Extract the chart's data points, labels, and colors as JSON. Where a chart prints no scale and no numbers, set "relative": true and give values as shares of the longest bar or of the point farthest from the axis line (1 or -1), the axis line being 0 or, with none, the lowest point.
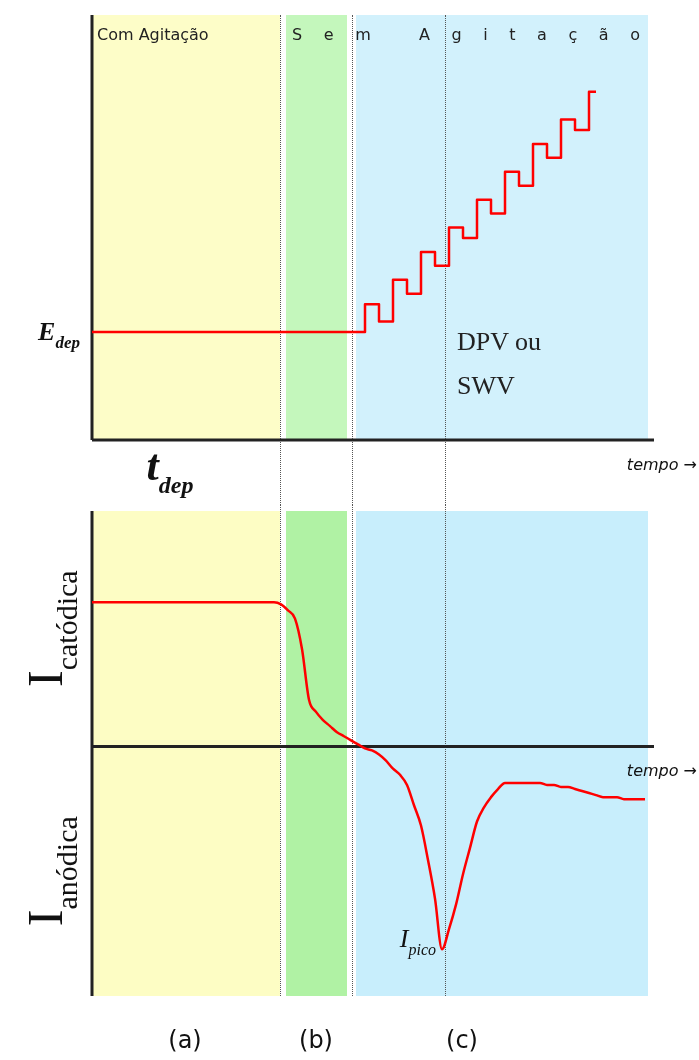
{
  "chart_data": [
    {
      "type": "step",
      "relative": true,
      "categories": [
        null,
        null,
        null,
        null,
        null,
        null,
        null,
        null,
        null,
        null,
        null,
        null,
        null,
        null,
        null,
        null,
        null,
        null,
        null,
        null,
        null,
        null,
        null,
        null,
        null,
        null,
        null,
        null,
        null,
        null,
        null,
        null,
        null,
        null,
        null,
        null,
        null,
        null,
        null,
        null,
        null,
        null,
        null,
        null,
        null,
        null,
        null,
        null,
        null,
        null,
        null,
        null,
        null,
        null,
        null,
        null,
        null,
        null,
        null,
        null,
        null,
        null,
        null,
        null,
        null,
        null,
        null,
        null,
        null,
        null,
        null,
        null,
        null,
        null,
        null,
        null,
        null,
        null,
        null,
        null
      ],
      "values": [
        0.31,
        0.31,
        0.31,
        0.31,
        0.31,
        0.31,
        0.31,
        0.31,
        0.31,
        0.31,
        0.31,
        0.31,
        0.31,
        0.31,
        0.31,
        0.31,
        0.31,
        0.31,
        0.31,
        0.31,
        0.31,
        0.31,
        0.31,
        0.31,
        0.31,
        0.31,
        0.31,
        0.31,
        0.31,
        0.31,
        0.31,
        0.31,
        0.31,
        0.31,
        0.31,
        0.31,
        0.31,
        0.31,
        0.31,
        0.39,
        0.39,
        0.34,
        0.34,
        0.46,
        0.46,
        0.42,
        0.42,
        0.54,
        0.54,
        0.5,
        0.5,
        0.61,
        0.61,
        0.58,
        0.58,
        0.69,
        0.69,
        0.65,
        0.65,
        0.77,
        0.77,
        0.73,
        0.73,
        0.85,
        0.85,
        0.81,
        0.81,
        0.92,
        0.92,
        0.89,
        0.89,
        1,
        1,
        null,
        null,
        null,
        null,
        null,
        null,
        null
      ],
      "color": "#ff0000",
      "ylabel": "E$_{dep}$",
      "xlabel": "tempo →",
      "annotations": [
        "Com Agitação",
        "Sem Agitação",
        "t$_{dep}$",
        "DPV ou SWV"
      ]
    },
    {
      "type": "line",
      "relative": true,
      "categories": [
        null,
        null,
        null,
        null,
        null,
        null,
        null,
        null,
        null,
        null,
        null,
        null,
        null,
        null,
        null,
        null,
        null,
        null,
        null,
        null,
        null,
        null,
        null,
        null,
        null,
        null,
        null,
        null,
        null,
        null,
        null,
        null,
        null,
        null,
        null,
        null,
        null,
        null,
        null,
        null,
        null,
        null,
        null,
        null,
        null,
        null,
        null,
        null,
        null,
        null,
        null,
        null,
        null,
        null,
        null,
        null,
        null,
        null,
        null,
        null,
        null,
        null,
        null,
        null,
        null,
        null,
        null,
        null,
        null,
        null,
        null,
        null,
        null,
        null,
        null,
        null,
        null,
        null,
        null,
        null
      ],
      "values": [
        0.71,
        0.71,
        0.71,
        0.71,
        0.71,
        0.71,
        0.71,
        0.71,
        0.71,
        0.71,
        0.71,
        0.71,
        0.71,
        0.71,
        0.71,
        0.71,
        0.71,
        0.71,
        0.71,
        0.71,
        0.71,
        0.71,
        0.71,
        0.71,
        0.71,
        0.71,
        0.71,
        0.7,
        0.67,
        0.63,
        0.48,
        0.23,
        0.17,
        0.13,
        0.1,
        0.07,
        0.05,
        0.03,
        0.01,
        -0.01,
        -0.02,
        -0.04,
        -0.07,
        -0.11,
        -0.14,
        -0.19,
        -0.29,
        -0.39,
        -0.56,
        -0.75,
        -1,
        -0.9,
        -0.78,
        -0.63,
        -0.5,
        -0.37,
        -0.3,
        -0.25,
        -0.21,
        -0.18,
        -0.18,
        -0.18,
        -0.18,
        -0.18,
        -0.18,
        -0.19,
        -0.19,
        -0.2,
        -0.2,
        -0.21,
        -0.22,
        -0.23,
        -0.24,
        -0.25,
        -0.25,
        -0.25,
        -0.26,
        -0.26,
        -0.26,
        -0.26
      ],
      "color": "#ff0000",
      "xlabel": "tempo →",
      "annotations": [
        "I$_{catódica}$",
        "I$_{anódica}$",
        "I$_{pico}$",
        "(a)",
        "(b)",
        "(c)"
      ]
    }
  ]
}
